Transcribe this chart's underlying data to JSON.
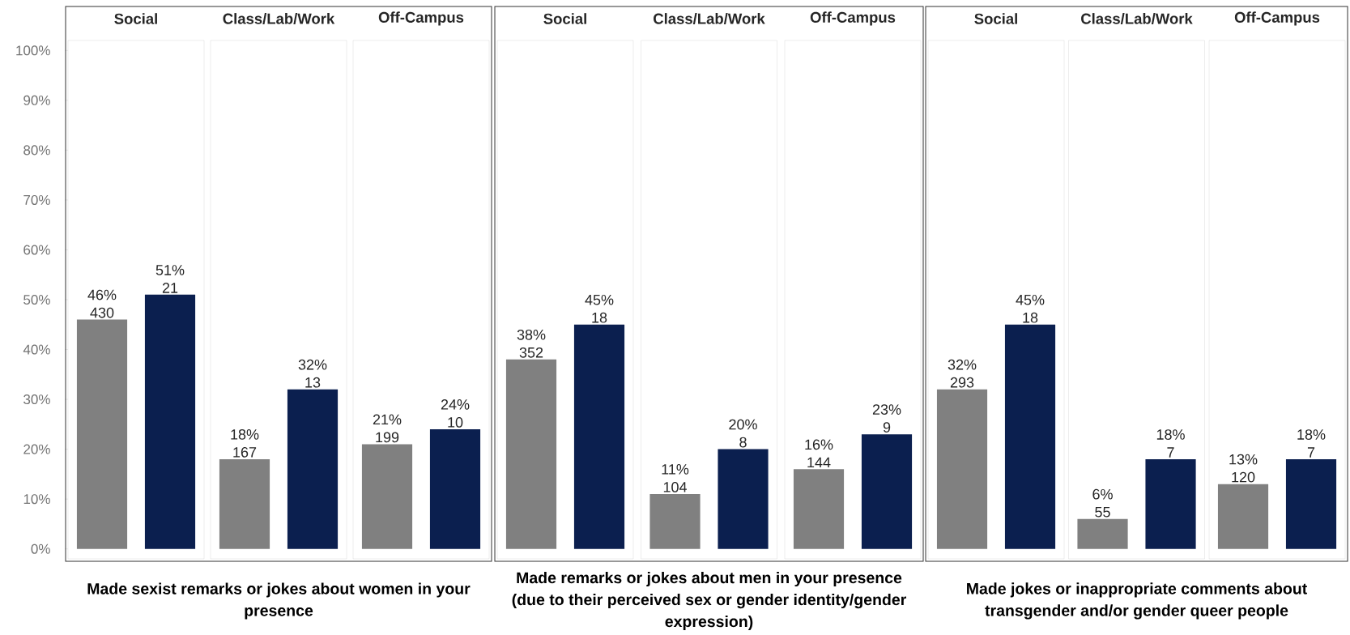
{
  "chart_data": [
    {
      "type": "bar",
      "categories": [
        "Social",
        "Class/Lab/Work",
        "Off-Campus"
      ],
      "xlabel": "Made sexist remarks or jokes about women in your presence",
      "ylim": [
        -2,
        102
      ],
      "yticks": [
        {
          "value": 0,
          "label": "0%"
        },
        {
          "value": 10,
          "label": "10%"
        },
        {
          "value": 20,
          "label": "20%"
        },
        {
          "value": 30,
          "label": "30%"
        },
        {
          "value": 40,
          "label": "40%"
        },
        {
          "value": 50,
          "label": "50%"
        },
        {
          "value": 60,
          "label": "60%"
        },
        {
          "value": 70,
          "label": "70%"
        },
        {
          "value": 80,
          "label": "80%"
        },
        {
          "value": 90,
          "label": "90%"
        },
        {
          "value": 100,
          "label": "100%"
        }
      ],
      "series": [
        {
          "color": "#808080",
          "values": [
            46,
            18,
            21
          ],
          "value_labels": [
            "46% 430",
            "18% 167",
            "21% 199"
          ]
        },
        {
          "color": "#0b1f4f",
          "values": [
            51,
            32,
            24
          ],
          "value_labels": [
            "51% 21",
            "32% 13",
            "24% 10"
          ]
        }
      ]
    },
    {
      "type": "bar",
      "categories": [
        "Social",
        "Class/Lab/Work",
        "Off-Campus"
      ],
      "xlabel": "Made remarks or jokes about men in your presence (due to their perceived sex or gender identity/gender expression)",
      "ylim": [
        -2,
        102
      ],
      "tick_labels": "x",
      "series": [
        {
          "color": "#808080",
          "values": [
            38,
            11,
            16
          ],
          "value_labels": [
            "38% 352",
            "11% 104",
            "16% 144"
          ]
        },
        {
          "color": "#0b1f4f",
          "values": [
            45,
            20,
            23
          ],
          "value_labels": [
            "45% 18",
            "20% 8",
            "23% 9"
          ]
        }
      ]
    },
    {
      "type": "bar",
      "categories": [
        "Social",
        "Class/Lab/Work",
        "Off-Campus"
      ],
      "xlabel": "Made jokes or inappropriate comments about transgender and/or gender queer people",
      "ylim": [
        -2,
        102
      ],
      "tick_labels": "x",
      "series": [
        {
          "color": "#808080",
          "values": [
            32,
            6,
            13
          ],
          "value_labels": [
            "32% 293",
            "6% 55",
            "13% 120"
          ]
        },
        {
          "color": "#0b1f4f",
          "values": [
            45,
            18,
            18
          ],
          "value_labels": [
            "45% 18",
            "18% 7",
            "18% 7"
          ]
        }
      ]
    }
  ]
}
